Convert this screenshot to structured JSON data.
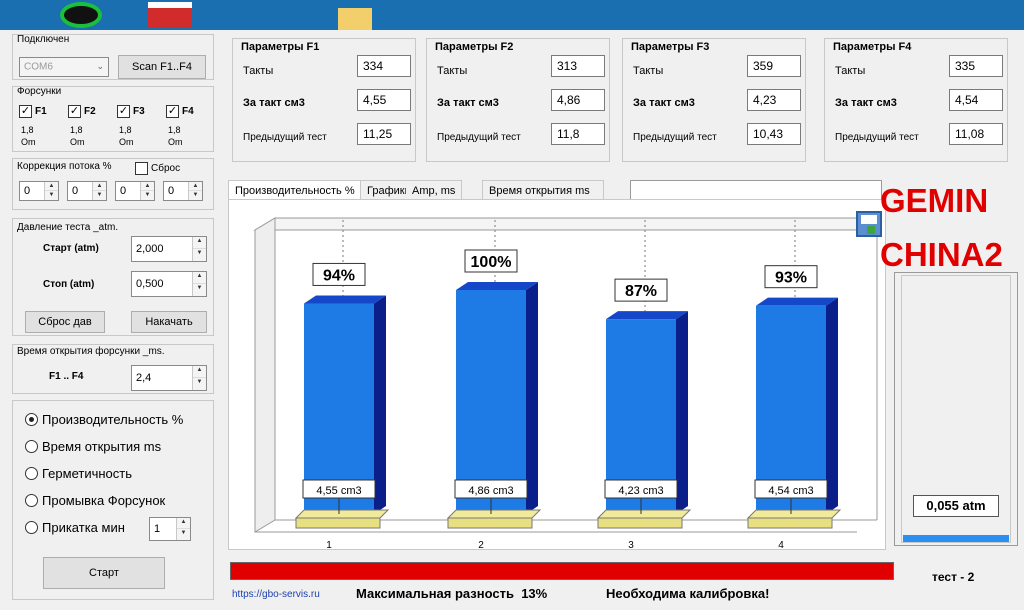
{
  "connection": {
    "title": "Подключен",
    "port": "COM6",
    "scan_label": "Scan F1..F4"
  },
  "injectors": {
    "title": "Форсунки",
    "items": [
      {
        "label": "F1",
        "checked": true,
        "res": "1,8",
        "unit": "Om"
      },
      {
        "label": "F2",
        "checked": true,
        "res": "1,8",
        "unit": "Om"
      },
      {
        "label": "F3",
        "checked": true,
        "res": "1,8",
        "unit": "Om"
      },
      {
        "label": "F4",
        "checked": true,
        "res": "1,8",
        "unit": "Om"
      }
    ]
  },
  "flow_correction": {
    "title": "Коррекция потока %",
    "reset_label": "Сброс",
    "values": [
      "0",
      "0",
      "0",
      "0"
    ]
  },
  "pressure": {
    "title": "Давление теста _atm.",
    "start_label": "Старт (atm)",
    "start_value": "2,000",
    "stop_label": "Стоп (atm)",
    "stop_value": "0,500",
    "reset_btn": "Сброс дав",
    "pump_btn": "Накачать"
  },
  "open_time": {
    "title": "Время открытия форсунки _ms.",
    "label": "F1 .. F4",
    "value": "2,4"
  },
  "modes": {
    "items": [
      "Производительность %",
      "Время открытия ms",
      "Герметичность",
      "Промывка Форсунок",
      "Прикатка мин"
    ],
    "selected": 0,
    "run_in_value": "1",
    "start_label": "Старт"
  },
  "params": [
    {
      "title": "Параметры F1",
      "cycles_label": "Такты",
      "cycles": "334",
      "per_label": "За такт см3",
      "per": "4,55",
      "prev_label": "Предыдущий тест",
      "prev": "11,25"
    },
    {
      "title": "Параметры F2",
      "cycles_label": "Такты",
      "cycles": "313",
      "per_label": "За такт см3",
      "per": "4,86",
      "prev_label": "Предыдущий тест",
      "prev": "11,8"
    },
    {
      "title": "Параметры F3",
      "cycles_label": "Такты",
      "cycles": "359",
      "per_label": "За такт см3",
      "per": "4,23",
      "prev_label": "Предыдущий тест",
      "prev": "10,43"
    },
    {
      "title": "Параметры F4",
      "cycles_label": "Такты",
      "cycles": "335",
      "per_label": "За такт см3",
      "per": "4,54",
      "prev_label": "Предыдущий тест",
      "prev": "11,08"
    }
  ],
  "tabs": [
    "Производительность %",
    "Графики",
    "Amp, ms",
    "Время открытия ms"
  ],
  "chart_data": {
    "type": "bar",
    "categories": [
      "1",
      "2",
      "3",
      "4"
    ],
    "values": [
      94,
      100,
      87,
      93
    ],
    "value_labels": [
      "94%",
      "100%",
      "87%",
      "93%"
    ],
    "volume_labels": [
      "4,55 cm3",
      "4,86 cm3",
      "4,23 cm3",
      "4,54 cm3"
    ],
    "ylim": [
      0,
      100
    ],
    "bar_color": "#1e7be6",
    "bar_side_color": "#0b1f8a",
    "base_color": "#e8e080"
  },
  "overlay": {
    "line1": "GEMIN",
    "line2": "CHINA2",
    "color": "#e00000"
  },
  "gauge": {
    "value": "0,055 atm"
  },
  "status": {
    "url": "https://gbo-servis.ru",
    "max_diff": "Максимальная разность  13%",
    "calib": "Необходима калибровка!",
    "test": "тест - 2",
    "bar_color": "#e00000"
  }
}
